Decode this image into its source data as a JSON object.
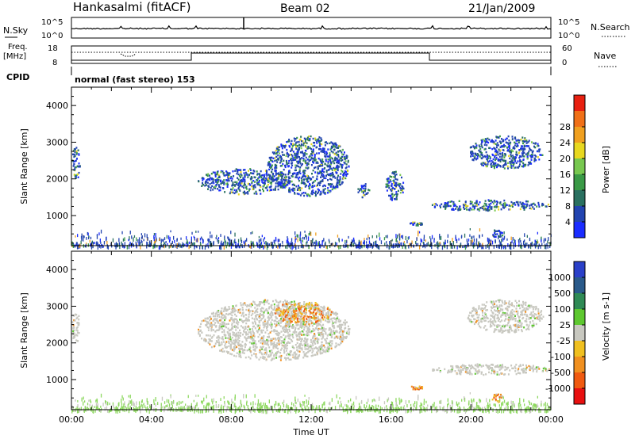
{
  "header": {
    "station": "Hankasalmi (fitACF)",
    "beam": "Beam 02",
    "date": "21/Jan/2009"
  },
  "status_panel": {
    "nsky_label": "N.Sky",
    "nsearch_label": "N.Search",
    "nsky_tick_top": "10^5",
    "nsky_tick_bottom": "10^0",
    "nsearch_tick_top": "10^5",
    "nsearch_tick_bottom": "10^0",
    "freq_label": "Freq.",
    "freq_unit": "[MHz]",
    "freq_tick_top": "18",
    "freq_tick_bottom": "8",
    "nave_label": "Nave",
    "nave_tick_top": "60",
    "nave_tick_bottom": "0",
    "cpid_label": "CPID",
    "cpid_text": "normal (fast stereo) 153"
  },
  "colors": {
    "grey_scatter": "#c8c8c0",
    "ground_green": "#8ed860"
  },
  "chart_data": [
    {
      "type": "heatmap",
      "panel": "power",
      "ylabel": "Slant Range [km]",
      "xlabel": "",
      "x_ticks": [],
      "y_ticks": [
        "1000",
        "2000",
        "3000",
        "4000"
      ],
      "xlim": [
        0,
        24
      ],
      "ylim": [
        180,
        4500
      ],
      "colorbar": {
        "label": "Power [dB]",
        "tick_labels": [
          "4",
          "8",
          "12",
          "16",
          "20",
          "24",
          "28"
        ],
        "colors": [
          "#1a2cff",
          "#2244b0",
          "#2a7060",
          "#3a9a46",
          "#78c850",
          "#e8d820",
          "#f0a020",
          "#f07018",
          "#e82010"
        ]
      },
      "echo_regions": [
        {
          "t": [
            0.0,
            0.4
          ],
          "r": [
            2000,
            2900
          ]
        },
        {
          "t": [
            6.3,
            11.0
          ],
          "r": [
            1600,
            2300
          ]
        },
        {
          "t": [
            9.8,
            13.9
          ],
          "r": [
            1550,
            3200
          ]
        },
        {
          "t": [
            14.3,
            14.9
          ],
          "r": [
            1500,
            1900
          ]
        },
        {
          "t": [
            15.7,
            16.6
          ],
          "r": [
            1400,
            2250
          ]
        },
        {
          "t": [
            16.9,
            17.6
          ],
          "r": [
            750,
            850
          ]
        },
        {
          "t": [
            17.9,
            23.9
          ],
          "r": [
            1150,
            1450
          ]
        },
        {
          "t": [
            19.8,
            23.6
          ],
          "r": [
            2300,
            3200
          ]
        },
        {
          "t": [
            21.0,
            21.6
          ],
          "r": [
            400,
            650
          ]
        }
      ]
    },
    {
      "type": "heatmap",
      "panel": "velocity",
      "ylabel": "Slant Range [km]",
      "xlabel": "Time UT",
      "x_ticks": [
        "00:00",
        "04:00",
        "08:00",
        "12:00",
        "16:00",
        "20:00",
        "00:00"
      ],
      "y_ticks": [
        "1000",
        "2000",
        "3000",
        "4000"
      ],
      "xlim": [
        0,
        24
      ],
      "ylim": [
        180,
        4500
      ],
      "colorbar": {
        "label": "Velocity [m s-1]",
        "tick_labels": [
          "1000",
          "500",
          "100",
          "25",
          "-25",
          "-100",
          "-500",
          "-1000"
        ],
        "colors": [
          "#2a40c8",
          "#2a5a8a",
          "#2f8a55",
          "#5ec830",
          "#c8c8c0",
          "#f0c020",
          "#f09020",
          "#f05a10",
          "#e81010"
        ]
      },
      "echo_regions": [
        {
          "t": [
            0.0,
            0.4
          ],
          "r": [
            2000,
            2900
          ],
          "v": "grey"
        },
        {
          "t": [
            6.3,
            13.9
          ],
          "r": [
            1550,
            3200
          ],
          "v": "grey"
        },
        {
          "t": [
            10.0,
            13.0
          ],
          "r": [
            2550,
            3150
          ],
          "v": "negative"
        },
        {
          "t": [
            16.9,
            17.6
          ],
          "r": [
            750,
            850
          ],
          "v": "negative"
        },
        {
          "t": [
            17.9,
            23.9
          ],
          "r": [
            1150,
            1450
          ],
          "v": "grey"
        },
        {
          "t": [
            19.8,
            23.6
          ],
          "r": [
            2300,
            3200
          ],
          "v": "grey"
        },
        {
          "t": [
            21.0,
            21.6
          ],
          "r": [
            400,
            650
          ],
          "v": "negative"
        }
      ]
    }
  ]
}
